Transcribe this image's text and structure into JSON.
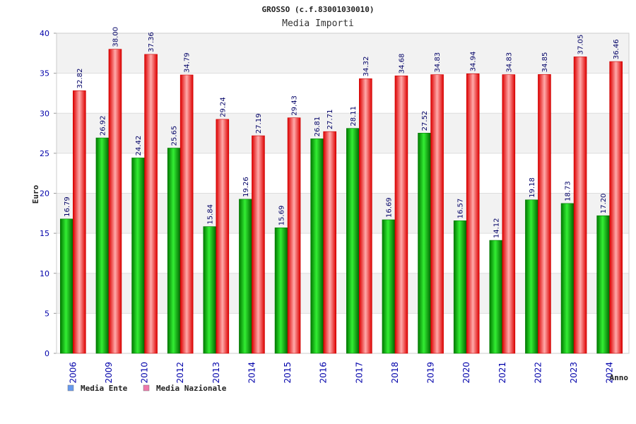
{
  "chart_data": {
    "type": "bar",
    "title": "GROSSO (c.f.83001030010)",
    "subtitle": "Media Importi",
    "xlabel": "Anno",
    "ylabel": "Euro",
    "ylim": [
      0,
      40
    ],
    "yticks": [
      0,
      5,
      10,
      15,
      20,
      25,
      30,
      35,
      40
    ],
    "grid": true,
    "legend_position": "bottom-left",
    "categories": [
      "2006",
      "2009",
      "2010",
      "2012",
      "2013",
      "2014",
      "2015",
      "2016",
      "2017",
      "2018",
      "2019",
      "2020",
      "2021",
      "2022",
      "2023",
      "2024"
    ],
    "series": [
      {
        "name": "Media Ente",
        "color": "#00bb00",
        "legend_color": "#6699ee",
        "values": [
          16.79,
          26.92,
          24.42,
          25.65,
          15.84,
          19.26,
          15.69,
          26.81,
          28.11,
          16.69,
          27.52,
          16.57,
          14.12,
          19.18,
          18.73,
          17.2
        ],
        "labels": [
          "16.79",
          "26.92",
          "24.42",
          "25.65",
          "15.84",
          "19.26",
          "15.69",
          "26.81",
          "28.11",
          "16.69",
          "27.52",
          "16.57",
          "14.12",
          "19.18",
          "18.73",
          "17.20"
        ]
      },
      {
        "name": "Media Nazionale",
        "color": "#ee1111",
        "legend_color": "#ee77aa",
        "values": [
          32.82,
          38.0,
          37.36,
          34.79,
          29.24,
          27.19,
          29.43,
          27.71,
          34.32,
          34.68,
          34.83,
          34.94,
          34.83,
          34.85,
          37.05,
          36.46
        ],
        "labels": [
          "32.82",
          "38.00",
          "37.36",
          "34.79",
          "29.24",
          "27.19",
          "29.43",
          "27.71",
          "34.32",
          "34.68",
          "34.83",
          "34.94",
          "34.83",
          "34.85",
          "37.05",
          "36.46"
        ]
      }
    ]
  }
}
